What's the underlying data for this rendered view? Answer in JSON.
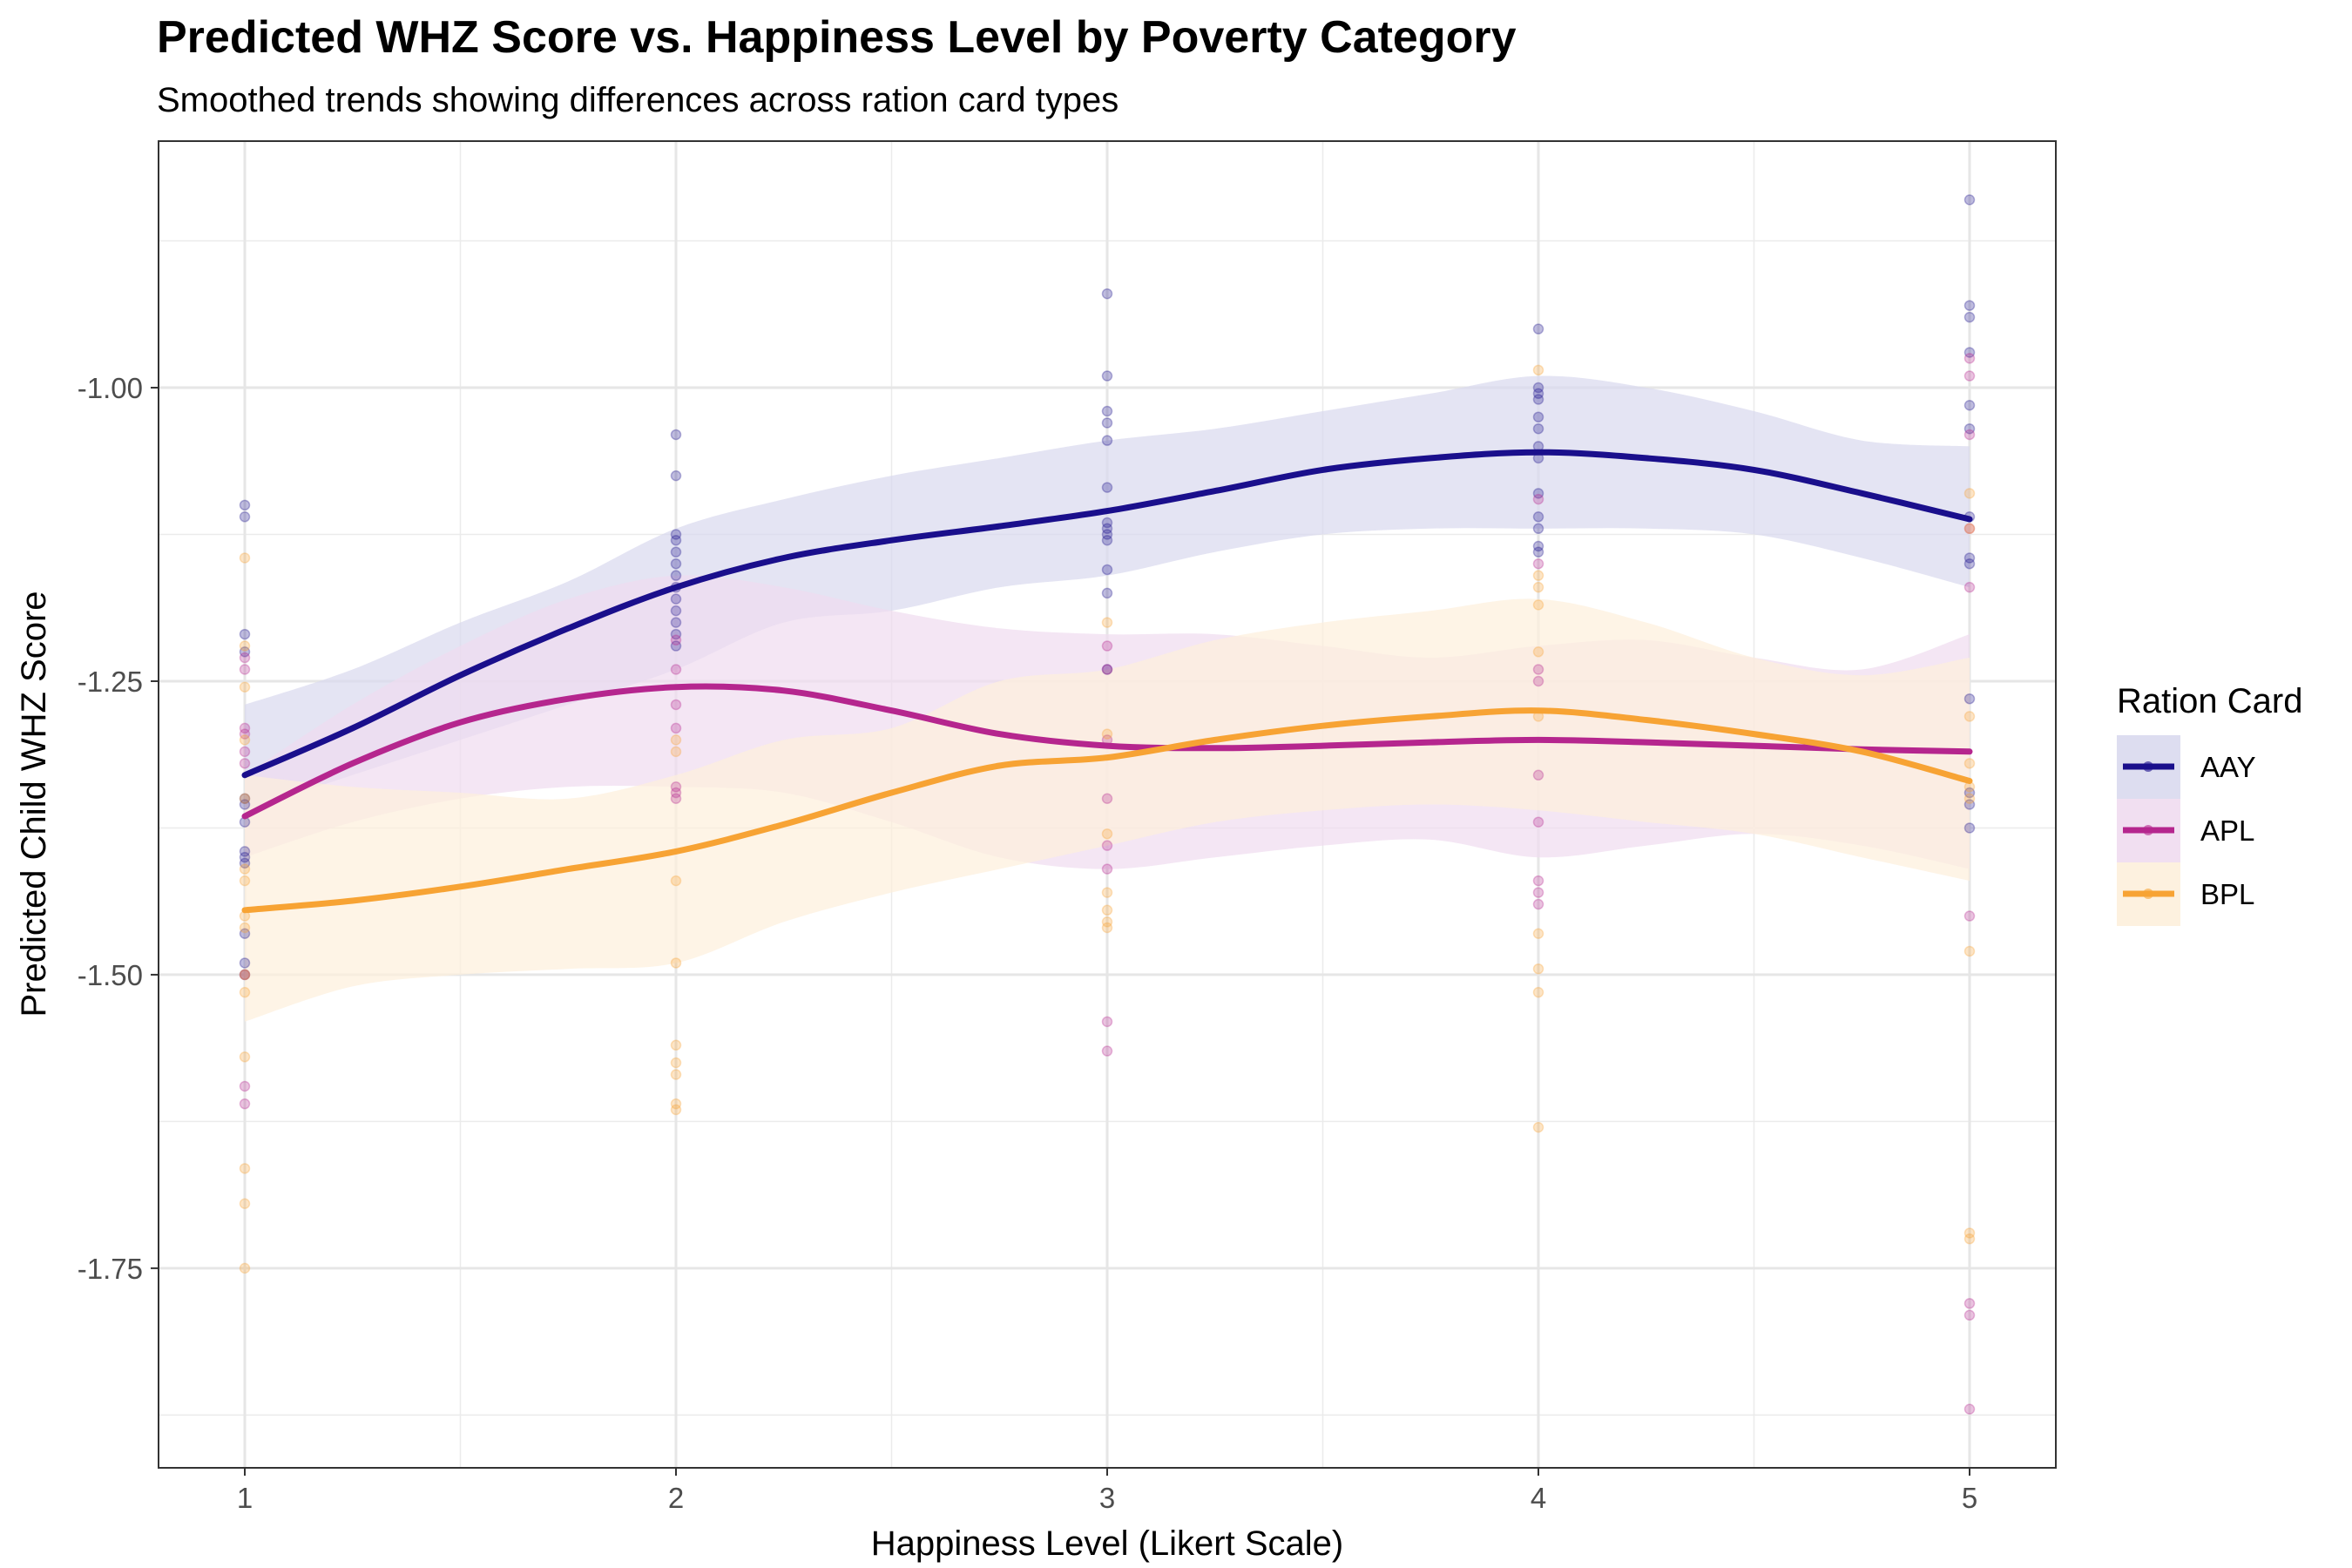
{
  "chart_data": {
    "type": "line",
    "title": "Predicted WHZ Score vs. Happiness Level by Poverty Category",
    "subtitle": "Smoothed trends showing differences across ration card types",
    "xlabel": "Happiness Level (Likert Scale)",
    "ylabel": "Predicted Child WHZ Score",
    "xlim": [
      0.8,
      5.2
    ],
    "ylim": [
      -1.92,
      -0.79
    ],
    "x_ticks": [
      1,
      2,
      3,
      4,
      5
    ],
    "x_tick_labels": [
      "1",
      "2",
      "3",
      "4",
      "5"
    ],
    "y_ticks": [
      -1.75,
      -1.5,
      -1.25,
      -1.0
    ],
    "y_tick_labels": [
      "-1.75",
      "-1.50",
      "-1.25",
      "-1.00"
    ],
    "grid": true,
    "legend": {
      "title": "Ration Card",
      "position": "right"
    },
    "series": [
      {
        "name": "AAY",
        "color": "#1a0f8c",
        "fill": "#d9d9ee",
        "smooth": {
          "x": [
            1,
            1.25,
            1.5,
            1.75,
            2,
            2.25,
            2.5,
            2.75,
            3,
            3.25,
            3.5,
            3.75,
            4,
            4.25,
            4.5,
            4.75,
            5
          ],
          "y": [
            -1.33,
            -1.29,
            -1.245,
            -1.205,
            -1.17,
            -1.145,
            -1.13,
            -1.118,
            -1.105,
            -1.088,
            -1.07,
            -1.06,
            -1.055,
            -1.06,
            -1.07,
            -1.09,
            -1.112
          ],
          "lower": [
            -1.36,
            -1.33,
            -1.3,
            -1.27,
            -1.24,
            -1.2,
            -1.19,
            -1.17,
            -1.16,
            -1.14,
            -1.125,
            -1.12,
            -1.12,
            -1.12,
            -1.125,
            -1.145,
            -1.17
          ],
          "upper": [
            -1.27,
            -1.24,
            -1.2,
            -1.165,
            -1.12,
            -1.095,
            -1.075,
            -1.06,
            -1.045,
            -1.035,
            -1.02,
            -1.005,
            -0.99,
            -1.0,
            -1.02,
            -1.045,
            -1.05
          ]
        },
        "points": {
          "1": [
            -1.1,
            -1.11,
            -1.21,
            -1.225,
            -1.35,
            -1.355,
            -1.37,
            -1.395,
            -1.4,
            -1.405,
            -1.465,
            -1.49,
            -1.5
          ],
          "2": [
            -1.04,
            -1.075,
            -1.125,
            -1.13,
            -1.14,
            -1.15,
            -1.16,
            -1.17,
            -1.18,
            -1.19,
            -1.2,
            -1.21,
            -1.22
          ],
          "3": [
            -0.92,
            -0.99,
            -1.02,
            -1.03,
            -1.045,
            -1.085,
            -1.115,
            -1.12,
            -1.125,
            -1.13,
            -1.155,
            -1.175,
            -1.24
          ],
          "4": [
            -0.95,
            -1.0,
            -1.005,
            -1.01,
            -1.025,
            -1.035,
            -1.05,
            -1.06,
            -1.09,
            -1.11,
            -1.12,
            -1.135,
            -1.14
          ],
          "5": [
            -0.84,
            -0.93,
            -0.94,
            -0.97,
            -1.015,
            -1.035,
            -1.11,
            -1.145,
            -1.15,
            -1.265,
            -1.345,
            -1.355,
            -1.375
          ]
        }
      },
      {
        "name": "APL",
        "color": "#b5268e",
        "fill": "#efdbef",
        "smooth": {
          "x": [
            1,
            1.25,
            1.5,
            1.75,
            2,
            2.25,
            2.5,
            2.75,
            3,
            3.25,
            3.5,
            3.75,
            4,
            4.25,
            4.5,
            4.75,
            5
          ],
          "y": [
            -1.365,
            -1.32,
            -1.285,
            -1.265,
            -1.255,
            -1.258,
            -1.275,
            -1.295,
            -1.305,
            -1.307,
            -1.305,
            -1.302,
            -1.3,
            -1.302,
            -1.305,
            -1.308,
            -1.31
          ],
          "lower": [
            -1.4,
            -1.37,
            -1.35,
            -1.34,
            -1.34,
            -1.345,
            -1.37,
            -1.4,
            -1.41,
            -1.4,
            -1.39,
            -1.385,
            -1.4,
            -1.39,
            -1.38,
            -1.39,
            -1.41
          ],
          "upper": [
            -1.33,
            -1.27,
            -1.22,
            -1.18,
            -1.16,
            -1.17,
            -1.19,
            -1.205,
            -1.21,
            -1.21,
            -1.22,
            -1.23,
            -1.22,
            -1.215,
            -1.23,
            -1.24,
            -1.21
          ]
        },
        "points": {
          "1": [
            -1.23,
            -1.24,
            -1.29,
            -1.295,
            -1.31,
            -1.32,
            -1.5,
            -1.595,
            -1.61
          ],
          "2": [
            -1.215,
            -1.24,
            -1.27,
            -1.29,
            -1.34,
            -1.345,
            -1.35
          ],
          "3": [
            -1.22,
            -1.24,
            -1.3,
            -1.35,
            -1.39,
            -1.41,
            -1.54,
            -1.565
          ],
          "4": [
            -1.095,
            -1.15,
            -1.24,
            -1.25,
            -1.33,
            -1.37,
            -1.42,
            -1.43,
            -1.44
          ],
          "5": [
            -0.975,
            -0.99,
            -1.04,
            -1.12,
            -1.17,
            -1.45,
            -1.78,
            -1.79,
            -1.87
          ]
        }
      },
      {
        "name": "BPL",
        "color": "#f7a334",
        "fill": "#fdf0dc",
        "smooth": {
          "x": [
            1,
            1.25,
            1.5,
            1.75,
            2,
            2.25,
            2.5,
            2.75,
            3,
            3.25,
            3.5,
            3.75,
            4,
            4.25,
            4.5,
            4.75,
            5
          ],
          "y": [
            -1.445,
            -1.437,
            -1.425,
            -1.41,
            -1.395,
            -1.372,
            -1.345,
            -1.322,
            -1.315,
            -1.3,
            -1.288,
            -1.28,
            -1.275,
            -1.283,
            -1.295,
            -1.31,
            -1.335
          ],
          "lower": [
            -1.54,
            -1.51,
            -1.5,
            -1.495,
            -1.49,
            -1.455,
            -1.43,
            -1.41,
            -1.39,
            -1.37,
            -1.36,
            -1.355,
            -1.36,
            -1.37,
            -1.38,
            -1.4,
            -1.42
          ],
          "upper": [
            -1.33,
            -1.34,
            -1.345,
            -1.35,
            -1.33,
            -1.3,
            -1.29,
            -1.25,
            -1.24,
            -1.215,
            -1.2,
            -1.19,
            -1.18,
            -1.2,
            -1.23,
            -1.245,
            -1.23
          ]
        },
        "points": {
          "1": [
            -1.145,
            -1.22,
            -1.255,
            -1.3,
            -1.35,
            -1.41,
            -1.42,
            -1.45,
            -1.46,
            -1.5,
            -1.515,
            -1.57,
            -1.665,
            -1.695,
            -1.75
          ],
          "2": [
            -1.3,
            -1.31,
            -1.42,
            -1.49,
            -1.56,
            -1.575,
            -1.585,
            -1.61,
            -1.615
          ],
          "3": [
            -1.2,
            -1.295,
            -1.38,
            -1.43,
            -1.445,
            -1.455,
            -1.46
          ],
          "4": [
            -0.985,
            -1.16,
            -1.17,
            -1.185,
            -1.225,
            -1.28,
            -1.465,
            -1.495,
            -1.515,
            -1.63
          ],
          "5": [
            -1.09,
            -1.12,
            -1.28,
            -1.32,
            -1.34,
            -1.35,
            -1.48,
            -1.72,
            -1.725
          ]
        }
      }
    ]
  }
}
